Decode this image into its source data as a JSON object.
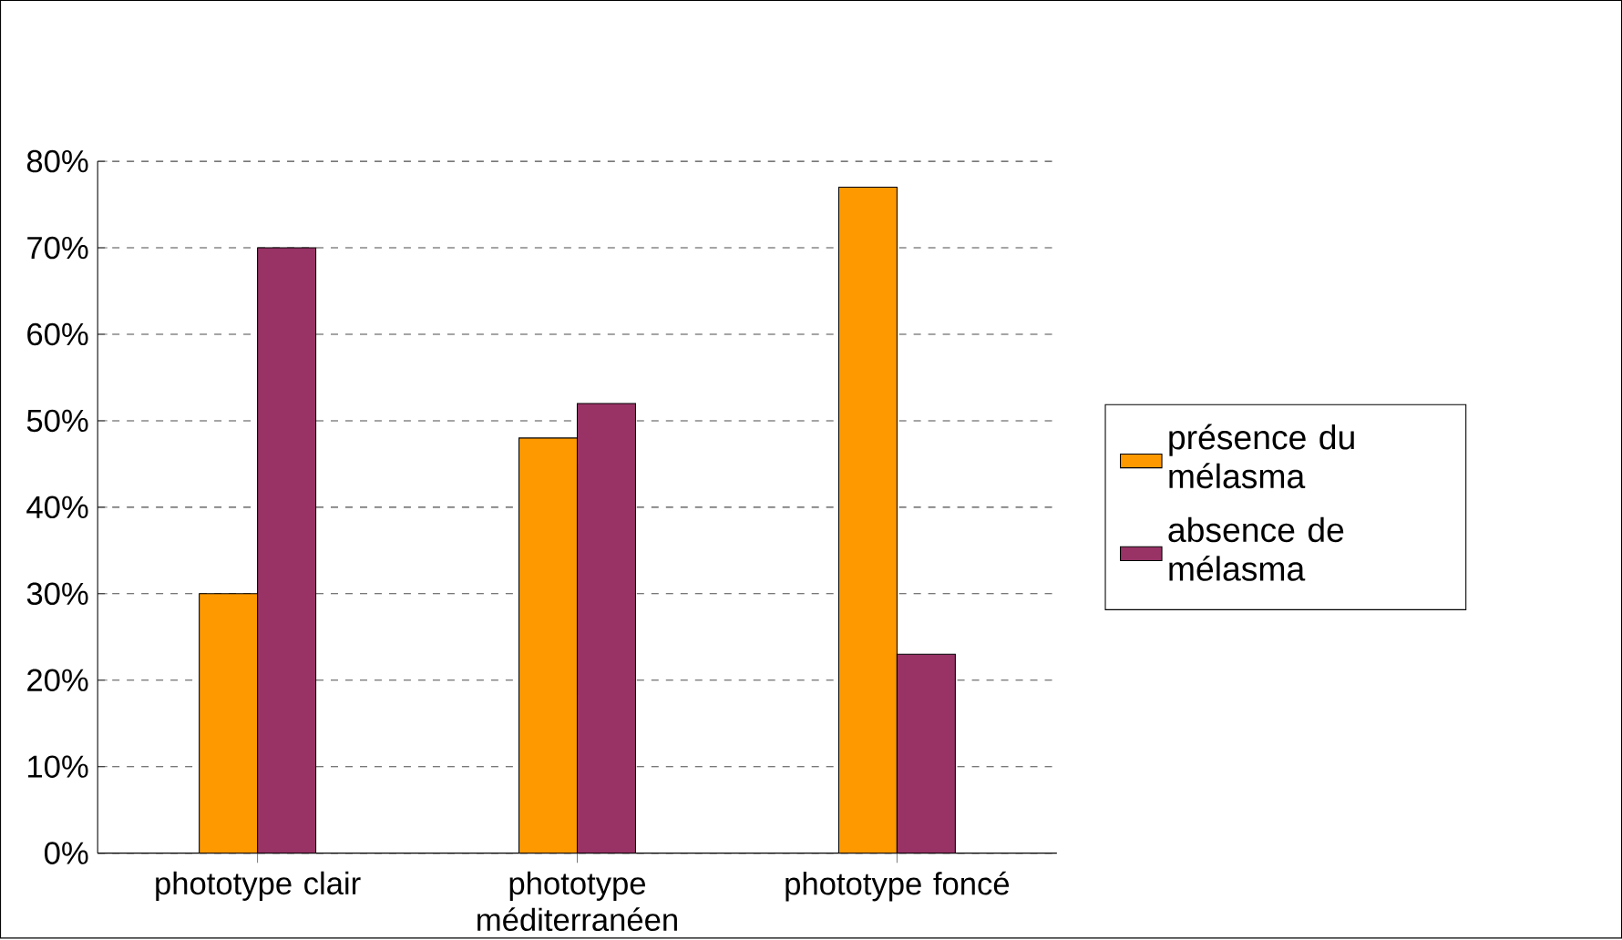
{
  "chart_data": {
    "type": "bar",
    "categories": [
      "phototype clair",
      "phototype méditerranéen",
      "phototype foncé"
    ],
    "series": [
      {
        "name": "présence du mélasma",
        "color": "#ff9900",
        "values": [
          30,
          48,
          77
        ]
      },
      {
        "name": "absence de mélasma",
        "color": "#993366",
        "values": [
          70,
          52,
          23
        ]
      }
    ],
    "ylim": [
      0,
      80
    ],
    "yticks": [
      {
        "value": 0,
        "label": "0%"
      },
      {
        "value": 10,
        "label": "10%"
      },
      {
        "value": 20,
        "label": "20%"
      },
      {
        "value": 30,
        "label": "30%"
      },
      {
        "value": 40,
        "label": "40%"
      },
      {
        "value": 50,
        "label": "50%"
      },
      {
        "value": 60,
        "label": "60%"
      },
      {
        "value": 70,
        "label": "70%"
      },
      {
        "value": 80,
        "label": "80%"
      }
    ],
    "grid": "y",
    "legend": "right"
  }
}
